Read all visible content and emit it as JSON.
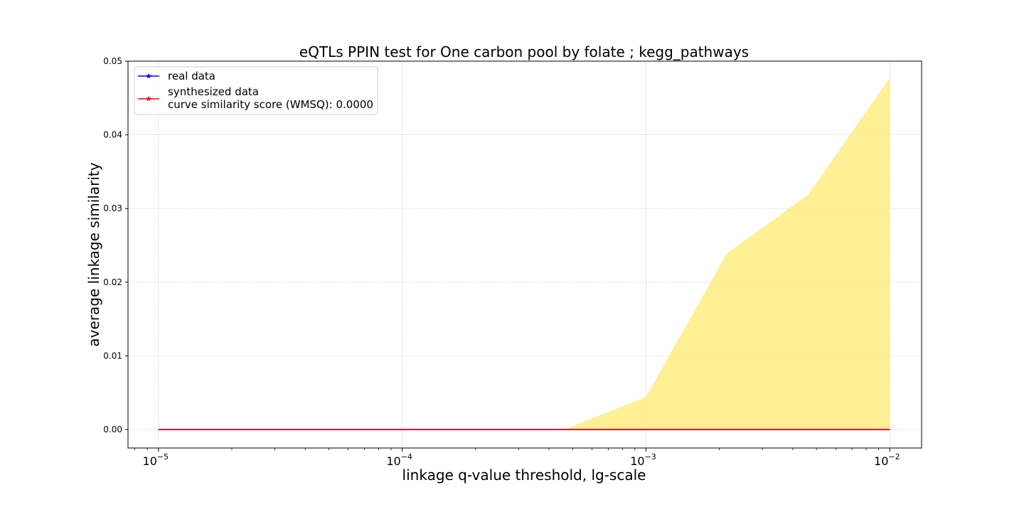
{
  "chart_data": {
    "type": "line",
    "title": "eQTLs PPIN test for One carbon pool by folate ; kegg_pathways",
    "xlabel": "linkage q-value threshold, lg-scale",
    "ylabel": "average linkage similarity",
    "xscale": "log",
    "xlim": [
      7.5e-06,
      0.0135
    ],
    "ylim": [
      -0.0025,
      0.05
    ],
    "yticks": [
      "0.00",
      "0.01",
      "0.02",
      "0.03",
      "0.04",
      "0.05"
    ],
    "ytick_values": [
      0,
      0.01,
      0.02,
      0.03,
      0.04,
      0.05
    ],
    "xticks": [
      {
        "value": 1e-05,
        "base": "10",
        "exp": "−5"
      },
      {
        "value": 0.0001,
        "base": "10",
        "exp": "−4"
      },
      {
        "value": 0.001,
        "base": "10",
        "exp": "−3"
      },
      {
        "value": 0.01,
        "base": "10",
        "exp": "−2"
      }
    ],
    "grid": true,
    "legend_position": "top-left",
    "series": [
      {
        "name": "real data",
        "color": "#0000ff",
        "marker": "star",
        "x": [
          1e-05,
          2.15e-05,
          4.64e-05,
          0.0001,
          0.000215,
          0.000464,
          0.001,
          0.00215,
          0.00464,
          0.01
        ],
        "y": [
          0,
          0,
          0,
          0,
          0,
          0,
          0,
          0,
          0,
          0
        ]
      },
      {
        "name": "synthesized data",
        "color": "#ff0000",
        "marker": "star",
        "x": [
          1e-05,
          2.15e-05,
          4.64e-05,
          0.0001,
          0.000215,
          0.000464,
          0.001,
          0.00215,
          0.00464,
          0.01
        ],
        "y": [
          0,
          0,
          0,
          0,
          0,
          0,
          0,
          0,
          0,
          0
        ]
      }
    ],
    "band": {
      "color": "#ffed8a",
      "x": [
        1e-05,
        2.15e-05,
        4.64e-05,
        0.0001,
        0.000215,
        0.000464,
        0.001,
        0.00215,
        0.00464,
        0.01
      ],
      "upper": [
        0,
        0,
        0,
        0,
        0,
        0,
        0.0044,
        0.0239,
        0.0319,
        0.0477
      ],
      "lower": [
        0,
        0,
        0,
        0,
        0,
        0,
        0,
        0,
        0,
        0
      ]
    },
    "legend": [
      {
        "series": 0,
        "lines": [
          "real data"
        ]
      },
      {
        "series": 1,
        "lines": [
          "synthesized data",
          "curve similarity score (WMSQ): 0.0000"
        ]
      }
    ]
  }
}
